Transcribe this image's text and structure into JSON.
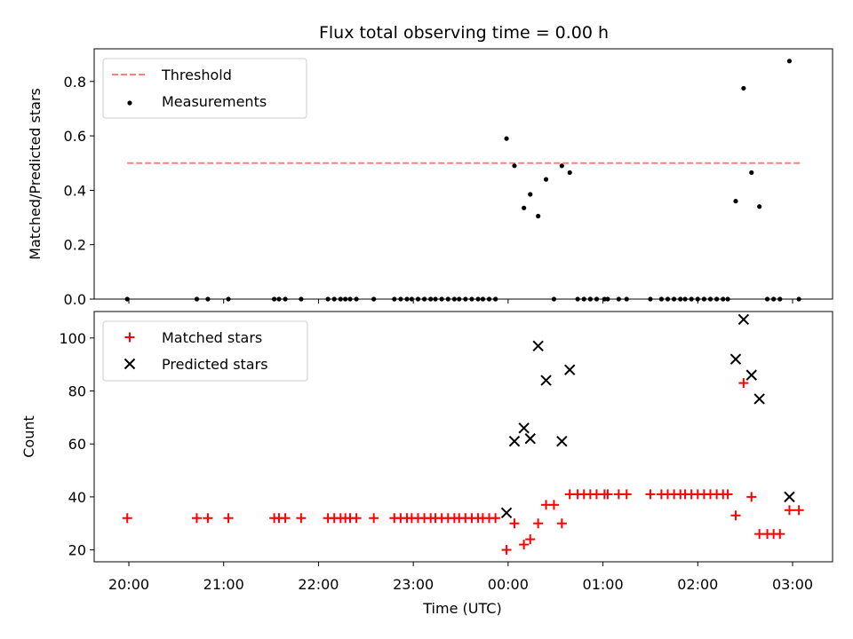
{
  "title": "Flux total observing time = 0.00 h",
  "colors": {
    "threshold": "#ff7f7f",
    "measurements": "#000000",
    "matched": "#ff0000",
    "predicted": "#000000"
  },
  "chart_data": [
    {
      "type": "scatter",
      "panel": "top",
      "ylabel": "Matched/Predicted stars",
      "xlabel": "",
      "ylim": [
        0,
        0.92
      ],
      "yticks": [
        "0.0",
        "0.2",
        "0.4",
        "0.6",
        "0.8"
      ],
      "legend": [
        "Threshold",
        "Measurements"
      ],
      "legend_position": "top-left",
      "threshold": {
        "name": "Threshold",
        "value": 0.5,
        "x_start": "19:59",
        "x_end": "03:05"
      },
      "series": [
        {
          "name": "Measurements",
          "points": [
            [
              "19:59",
              0.0
            ],
            [
              "20:43",
              0.0
            ],
            [
              "20:50",
              0.0
            ],
            [
              "21:03",
              0.0
            ],
            [
              "21:32",
              0.0
            ],
            [
              "21:35",
              0.0
            ],
            [
              "21:39",
              0.0
            ],
            [
              "21:49",
              0.0
            ],
            [
              "22:06",
              0.0
            ],
            [
              "22:10",
              0.0
            ],
            [
              "22:14",
              0.0
            ],
            [
              "22:17",
              0.0
            ],
            [
              "22:20",
              0.0
            ],
            [
              "22:24",
              0.0
            ],
            [
              "22:35",
              0.0
            ],
            [
              "22:48",
              0.0
            ],
            [
              "22:52",
              0.0
            ],
            [
              "22:56",
              0.0
            ],
            [
              "22:59",
              0.0
            ],
            [
              "23:03",
              0.0
            ],
            [
              "23:07",
              0.0
            ],
            [
              "23:11",
              0.0
            ],
            [
              "23:14",
              0.0
            ],
            [
              "23:18",
              0.0
            ],
            [
              "23:22",
              0.0
            ],
            [
              "23:26",
              0.0
            ],
            [
              "23:29",
              0.0
            ],
            [
              "23:33",
              0.0
            ],
            [
              "23:37",
              0.0
            ],
            [
              "23:41",
              0.0
            ],
            [
              "23:44",
              0.0
            ],
            [
              "23:48",
              0.0
            ],
            [
              "23:52",
              0.0
            ],
            [
              "23:59",
              0.59
            ],
            [
              "00:04",
              0.49
            ],
            [
              "00:10",
              0.335
            ],
            [
              "00:14",
              0.385
            ],
            [
              "00:19",
              0.305
            ],
            [
              "00:24",
              0.44
            ],
            [
              "00:29",
              0.0
            ],
            [
              "00:34",
              0.49
            ],
            [
              "00:39",
              0.465
            ],
            [
              "00:44",
              0.0
            ],
            [
              "00:48",
              0.0
            ],
            [
              "00:52",
              0.0
            ],
            [
              "00:56",
              0.0
            ],
            [
              "01:01",
              0.0
            ],
            [
              "01:03",
              0.0
            ],
            [
              "01:10",
              0.0
            ],
            [
              "01:15",
              0.0
            ],
            [
              "01:30",
              0.0
            ],
            [
              "01:37",
              0.0
            ],
            [
              "01:41",
              0.0
            ],
            [
              "01:45",
              0.0
            ],
            [
              "01:49",
              0.0
            ],
            [
              "01:52",
              0.0
            ],
            [
              "01:56",
              0.0
            ],
            [
              "02:00",
              0.0
            ],
            [
              "02:04",
              0.0
            ],
            [
              "02:08",
              0.0
            ],
            [
              "02:12",
              0.0
            ],
            [
              "02:16",
              0.0
            ],
            [
              "02:19",
              0.0
            ],
            [
              "02:24",
              0.36
            ],
            [
              "02:29",
              0.775
            ],
            [
              "02:34",
              0.465
            ],
            [
              "02:39",
              0.34
            ],
            [
              "02:44",
              0.0
            ],
            [
              "02:48",
              0.0
            ],
            [
              "02:52",
              0.0
            ],
            [
              "02:58",
              0.875
            ],
            [
              "03:04",
              0.0
            ]
          ]
        }
      ]
    },
    {
      "type": "scatter",
      "panel": "bottom",
      "ylabel": "Count",
      "xlabel": "Time (UTC)",
      "ylim": [
        15.5,
        110
      ],
      "yticks": [
        "20",
        "40",
        "60",
        "80",
        "100"
      ],
      "xticks": [
        "20:00",
        "21:00",
        "22:00",
        "23:00",
        "00:00",
        "01:00",
        "02:00",
        "03:00"
      ],
      "legend": [
        "Matched stars",
        "Predicted stars"
      ],
      "legend_position": "top-left",
      "series": [
        {
          "name": "Matched stars",
          "points": [
            [
              "19:59",
              32
            ],
            [
              "20:43",
              32
            ],
            [
              "20:50",
              32
            ],
            [
              "21:03",
              32
            ],
            [
              "21:32",
              32
            ],
            [
              "21:35",
              32
            ],
            [
              "21:39",
              32
            ],
            [
              "21:49",
              32
            ],
            [
              "22:06",
              32
            ],
            [
              "22:10",
              32
            ],
            [
              "22:14",
              32
            ],
            [
              "22:17",
              32
            ],
            [
              "22:20",
              32
            ],
            [
              "22:24",
              32
            ],
            [
              "22:35",
              32
            ],
            [
              "22:48",
              32
            ],
            [
              "22:52",
              32
            ],
            [
              "22:56",
              32
            ],
            [
              "22:59",
              32
            ],
            [
              "23:03",
              32
            ],
            [
              "23:07",
              32
            ],
            [
              "23:11",
              32
            ],
            [
              "23:14",
              32
            ],
            [
              "23:18",
              32
            ],
            [
              "23:22",
              32
            ],
            [
              "23:26",
              32
            ],
            [
              "23:29",
              32
            ],
            [
              "23:33",
              32
            ],
            [
              "23:37",
              32
            ],
            [
              "23:41",
              32
            ],
            [
              "23:44",
              32
            ],
            [
              "23:48",
              32
            ],
            [
              "23:52",
              32
            ],
            [
              "23:59",
              20
            ],
            [
              "00:04",
              30
            ],
            [
              "00:10",
              22
            ],
            [
              "00:14",
              24
            ],
            [
              "00:19",
              30
            ],
            [
              "00:24",
              37
            ],
            [
              "00:29",
              37
            ],
            [
              "00:34",
              30
            ],
            [
              "00:39",
              41
            ],
            [
              "00:44",
              41
            ],
            [
              "00:48",
              41
            ],
            [
              "00:52",
              41
            ],
            [
              "00:56",
              41
            ],
            [
              "01:01",
              41
            ],
            [
              "01:03",
              41
            ],
            [
              "01:10",
              41
            ],
            [
              "01:15",
              41
            ],
            [
              "01:30",
              41
            ],
            [
              "01:37",
              41
            ],
            [
              "01:41",
              41
            ],
            [
              "01:45",
              41
            ],
            [
              "01:49",
              41
            ],
            [
              "01:52",
              41
            ],
            [
              "01:56",
              41
            ],
            [
              "02:00",
              41
            ],
            [
              "02:04",
              41
            ],
            [
              "02:08",
              41
            ],
            [
              "02:12",
              41
            ],
            [
              "02:16",
              41
            ],
            [
              "02:19",
              41
            ],
            [
              "02:24",
              33
            ],
            [
              "02:29",
              83
            ],
            [
              "02:34",
              40
            ],
            [
              "02:39",
              26
            ],
            [
              "02:44",
              26
            ],
            [
              "02:48",
              26
            ],
            [
              "02:52",
              26
            ],
            [
              "02:58",
              35
            ],
            [
              "03:04",
              35
            ]
          ]
        },
        {
          "name": "Predicted stars",
          "points": [
            [
              "23:59",
              34
            ],
            [
              "00:04",
              61
            ],
            [
              "00:10",
              66
            ],
            [
              "00:14",
              62
            ],
            [
              "00:19",
              97
            ],
            [
              "00:24",
              84
            ],
            [
              "00:34",
              61
            ],
            [
              "00:39",
              88
            ],
            [
              "02:24",
              92
            ],
            [
              "02:29",
              107
            ],
            [
              "02:34",
              86
            ],
            [
              "02:39",
              77
            ],
            [
              "02:58",
              40
            ]
          ]
        }
      ]
    }
  ]
}
